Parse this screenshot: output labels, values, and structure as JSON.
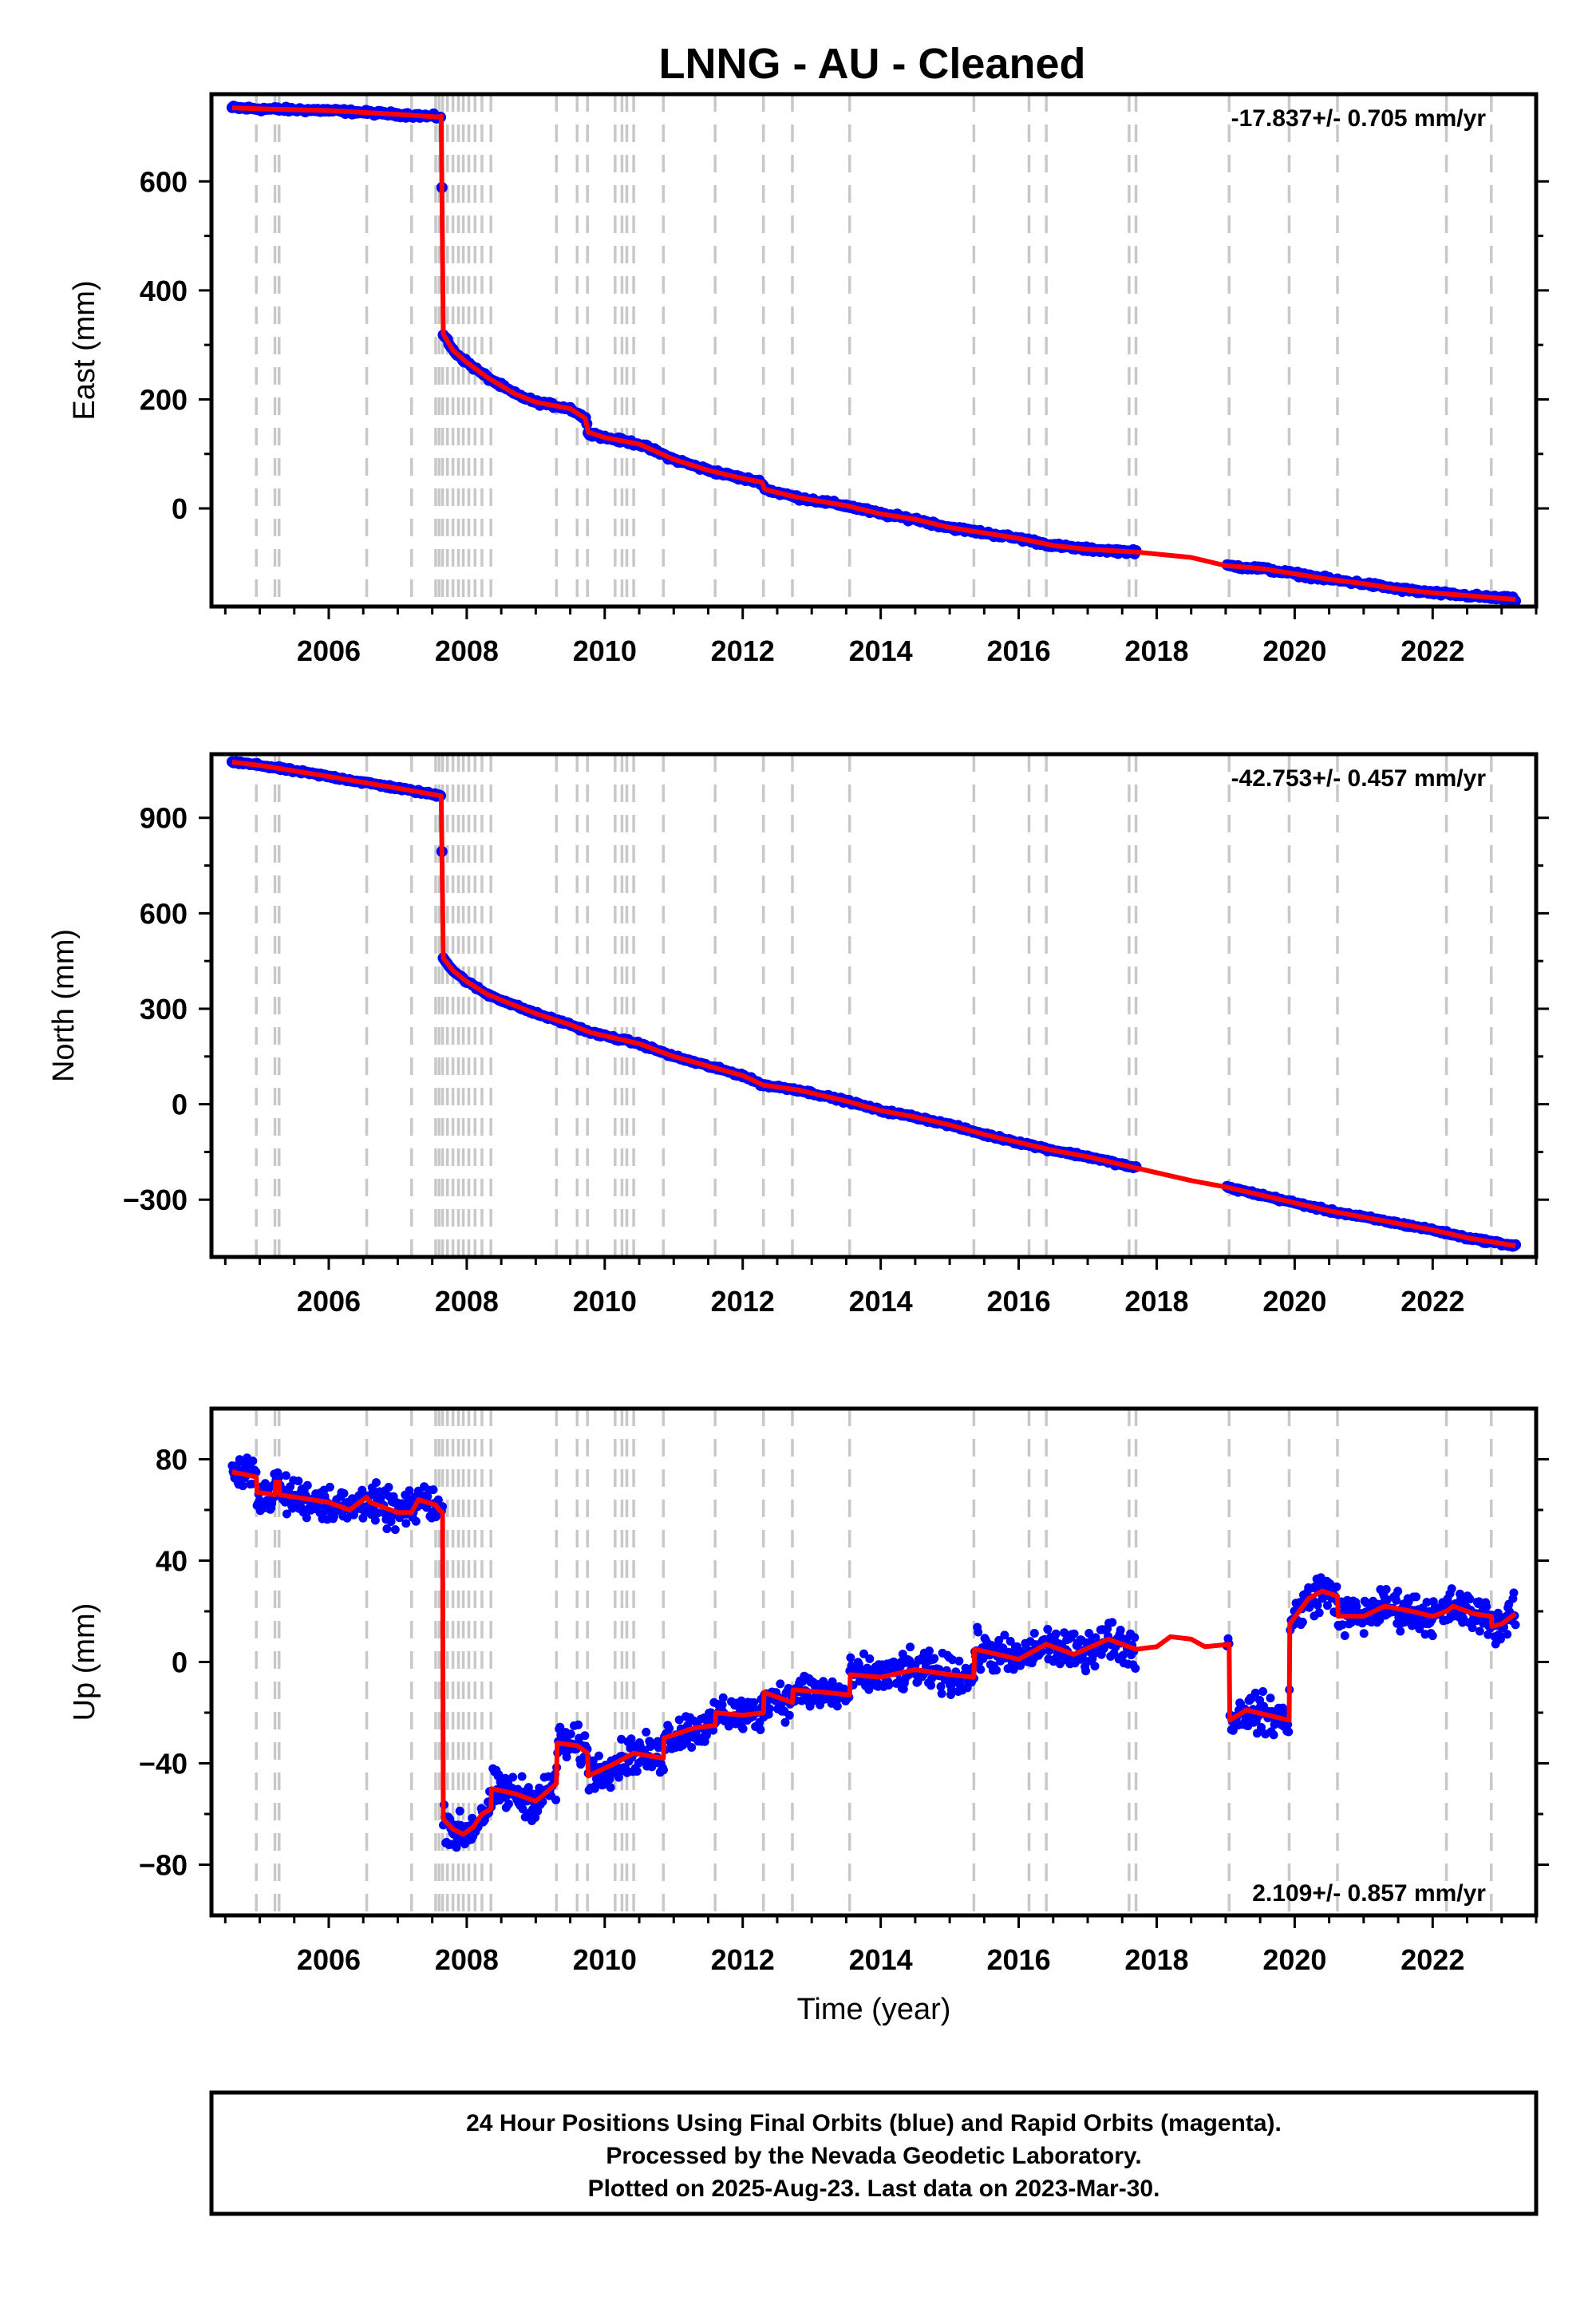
{
  "title": "LNNG  - AU - Cleaned",
  "colors": {
    "data": "#0000ff",
    "model": "#ff0000",
    "events": "#c8c8c8",
    "frame": "#000000"
  },
  "chart_data": [
    {
      "type": "scatter",
      "name": "east",
      "ylabel": "East (mm)",
      "rate": "-17.837+/- 0.705 mm/yr",
      "xlim": [
        2004.3,
        2023.5
      ],
      "ylim": [
        -180,
        760
      ],
      "yticks": [
        0,
        200,
        400,
        600
      ],
      "yticklabels": [
        "0",
        "200",
        "400",
        "600"
      ],
      "xticks": [
        2006,
        2008,
        2010,
        2012,
        2014,
        2016,
        2018,
        2020,
        2022
      ],
      "model": [
        [
          2004.6,
          735
        ],
        [
          2005.0,
          733
        ],
        [
          2006.0,
          730
        ],
        [
          2007.0,
          723
        ],
        [
          2007.6,
          718
        ],
        [
          2007.63,
          720
        ],
        [
          2007.66,
          320
        ],
        [
          2007.8,
          290
        ],
        [
          2008.0,
          268
        ],
        [
          2008.3,
          240
        ],
        [
          2008.7,
          210
        ],
        [
          2009.0,
          195
        ],
        [
          2009.5,
          183
        ],
        [
          2009.72,
          165
        ],
        [
          2009.76,
          140
        ],
        [
          2010.0,
          130
        ],
        [
          2010.5,
          118
        ],
        [
          2011.0,
          90
        ],
        [
          2011.5,
          70
        ],
        [
          2012.0,
          55
        ],
        [
          2012.28,
          48
        ],
        [
          2012.32,
          35
        ],
        [
          2012.8,
          20
        ],
        [
          2013.5,
          5
        ],
        [
          2014.0,
          -10
        ],
        [
          2014.5,
          -20
        ],
        [
          2015.0,
          -35
        ],
        [
          2015.5,
          -45
        ],
        [
          2016.0,
          -55
        ],
        [
          2016.5,
          -68
        ],
        [
          2017.0,
          -75
        ],
        [
          2017.7,
          -80
        ],
        [
          2018.5,
          -90
        ],
        [
          2019.0,
          -105
        ],
        [
          2019.5,
          -110
        ],
        [
          2020.0,
          -120
        ],
        [
          2020.5,
          -130
        ],
        [
          2021.0,
          -138
        ],
        [
          2021.5,
          -148
        ],
        [
          2022.0,
          -155
        ],
        [
          2022.5,
          -160
        ],
        [
          2023.2,
          -167
        ]
      ],
      "gaps": [
        [
          2017.7,
          2019.0
        ]
      ],
      "noise": 5,
      "events": [
        2004.95,
        2005.22,
        2005.28,
        2006.55,
        2007.2,
        2007.55,
        2007.6,
        2007.65,
        2007.72,
        2007.8,
        2007.88,
        2007.95,
        2008.03,
        2008.12,
        2008.22,
        2008.35,
        2009.3,
        2009.6,
        2009.75,
        2010.15,
        2010.25,
        2010.32,
        2010.42,
        2010.85,
        2011.6,
        2012.3,
        2012.72,
        2013.55,
        2015.35,
        2016.15,
        2016.4,
        2017.6,
        2017.7,
        2019.05,
        2019.92,
        2020.62,
        2022.2,
        2022.85
      ]
    },
    {
      "type": "scatter",
      "name": "north",
      "ylabel": "North (mm)",
      "rate": "-42.753+/- 0.457 mm/yr",
      "xlim": [
        2004.3,
        2023.5
      ],
      "ylim": [
        -480,
        1100
      ],
      "yticks": [
        -300,
        0,
        300,
        600,
        900
      ],
      "yticklabels": [
        "−300",
        "0",
        "300",
        "600",
        "900"
      ],
      "xticks": [
        2006,
        2008,
        2010,
        2012,
        2014,
        2016,
        2018,
        2020,
        2022
      ],
      "model": [
        [
          2004.6,
          1075
        ],
        [
          2005.0,
          1065
        ],
        [
          2006.0,
          1030
        ],
        [
          2007.0,
          993
        ],
        [
          2007.6,
          970
        ],
        [
          2007.63,
          968
        ],
        [
          2007.66,
          460
        ],
        [
          2007.8,
          420
        ],
        [
          2008.0,
          385
        ],
        [
          2008.3,
          345
        ],
        [
          2008.7,
          310
        ],
        [
          2009.0,
          285
        ],
        [
          2009.5,
          250
        ],
        [
          2009.8,
          225
        ],
        [
          2010.0,
          215
        ],
        [
          2010.5,
          190
        ],
        [
          2011.0,
          150
        ],
        [
          2011.5,
          120
        ],
        [
          2012.0,
          90
        ],
        [
          2012.3,
          60
        ],
        [
          2012.8,
          45
        ],
        [
          2013.5,
          10
        ],
        [
          2014.0,
          -20
        ],
        [
          2014.5,
          -40
        ],
        [
          2015.0,
          -65
        ],
        [
          2015.5,
          -95
        ],
        [
          2016.0,
          -120
        ],
        [
          2016.5,
          -145
        ],
        [
          2017.0,
          -165
        ],
        [
          2017.7,
          -200
        ],
        [
          2018.5,
          -240
        ],
        [
          2019.0,
          -260
        ],
        [
          2019.5,
          -285
        ],
        [
          2020.0,
          -310
        ],
        [
          2020.5,
          -335
        ],
        [
          2021.0,
          -355
        ],
        [
          2021.5,
          -375
        ],
        [
          2022.0,
          -395
        ],
        [
          2022.5,
          -420
        ],
        [
          2023.2,
          -445
        ]
      ],
      "gaps": [
        [
          2017.7,
          2019.0
        ]
      ],
      "noise": 6,
      "events": [
        2004.95,
        2005.22,
        2005.28,
        2006.55,
        2007.2,
        2007.55,
        2007.6,
        2007.65,
        2007.72,
        2007.8,
        2007.88,
        2007.95,
        2008.03,
        2008.12,
        2008.22,
        2008.35,
        2009.3,
        2009.6,
        2009.75,
        2010.15,
        2010.25,
        2010.32,
        2010.42,
        2010.85,
        2011.6,
        2012.3,
        2012.72,
        2013.55,
        2015.35,
        2016.15,
        2016.4,
        2017.6,
        2017.7,
        2019.05,
        2019.92,
        2020.62,
        2022.2,
        2022.85
      ]
    },
    {
      "type": "scatter",
      "name": "up",
      "ylabel": "Up (mm)",
      "xlabel": "Time (year)",
      "rate": "2.109+/- 0.857 mm/yr",
      "xlim": [
        2004.3,
        2023.5
      ],
      "ylim": [
        -100,
        100
      ],
      "yticks": [
        -80,
        -40,
        0,
        40,
        80
      ],
      "yticklabels": [
        "−80",
        "−40",
        "0",
        "40",
        "80"
      ],
      "xticks": [
        2006,
        2008,
        2010,
        2012,
        2014,
        2016,
        2018,
        2020,
        2022
      ],
      "model": [
        [
          2004.6,
          75
        ],
        [
          2004.95,
          73
        ],
        [
          2004.96,
          67
        ],
        [
          2005.22,
          66
        ],
        [
          2005.23,
          71
        ],
        [
          2005.28,
          71
        ],
        [
          2005.29,
          66
        ],
        [
          2006.0,
          63
        ],
        [
          2006.3,
          60
        ],
        [
          2006.55,
          65
        ],
        [
          2006.6,
          63
        ],
        [
          2007.0,
          59
        ],
        [
          2007.2,
          59
        ],
        [
          2007.3,
          64
        ],
        [
          2007.55,
          62
        ],
        [
          2007.6,
          60
        ],
        [
          2007.65,
          59
        ],
        [
          2007.66,
          -62
        ],
        [
          2007.8,
          -66
        ],
        [
          2007.95,
          -68
        ],
        [
          2008.1,
          -65
        ],
        [
          2008.22,
          -60
        ],
        [
          2008.35,
          -58
        ],
        [
          2008.36,
          -50
        ],
        [
          2008.7,
          -52
        ],
        [
          2009.0,
          -55
        ],
        [
          2009.3,
          -48
        ],
        [
          2009.31,
          -32
        ],
        [
          2009.6,
          -33
        ],
        [
          2009.75,
          -36
        ],
        [
          2009.76,
          -45
        ],
        [
          2010.15,
          -40
        ],
        [
          2010.42,
          -36
        ],
        [
          2010.85,
          -38
        ],
        [
          2010.86,
          -30
        ],
        [
          2011.3,
          -26
        ],
        [
          2011.6,
          -25
        ],
        [
          2011.61,
          -20
        ],
        [
          2012.0,
          -21
        ],
        [
          2012.3,
          -20
        ],
        [
          2012.31,
          -12
        ],
        [
          2012.72,
          -16
        ],
        [
          2012.73,
          -11
        ],
        [
          2013.2,
          -12
        ],
        [
          2013.55,
          -13
        ],
        [
          2013.56,
          -5
        ],
        [
          2014.0,
          -6
        ],
        [
          2014.5,
          -3
        ],
        [
          2015.0,
          -5
        ],
        [
          2015.35,
          -6
        ],
        [
          2015.36,
          5
        ],
        [
          2015.7,
          3
        ],
        [
          2016.0,
          1
        ],
        [
          2016.4,
          7
        ],
        [
          2016.8,
          3
        ],
        [
          2017.3,
          9
        ],
        [
          2017.7,
          5
        ],
        [
          2018.0,
          6
        ],
        [
          2018.2,
          10
        ],
        [
          2018.5,
          9
        ],
        [
          2018.7,
          6
        ],
        [
          2019.05,
          7
        ],
        [
          2019.06,
          -23
        ],
        [
          2019.3,
          -19
        ],
        [
          2019.92,
          -23
        ],
        [
          2019.93,
          15
        ],
        [
          2020.2,
          25
        ],
        [
          2020.4,
          28
        ],
        [
          2020.62,
          26
        ],
        [
          2020.63,
          18
        ],
        [
          2021.0,
          18
        ],
        [
          2021.3,
          22
        ],
        [
          2021.7,
          20
        ],
        [
          2022.0,
          18
        ],
        [
          2022.2,
          20
        ],
        [
          2022.3,
          22
        ],
        [
          2022.6,
          19
        ],
        [
          2022.85,
          18
        ],
        [
          2022.86,
          14
        ],
        [
          2023.0,
          15
        ],
        [
          2023.2,
          19
        ]
      ],
      "gaps": [
        [
          2017.7,
          2019.0
        ]
      ],
      "noise": 6,
      "events": [
        2004.95,
        2005.22,
        2005.28,
        2006.55,
        2007.2,
        2007.55,
        2007.6,
        2007.65,
        2007.72,
        2007.8,
        2007.88,
        2007.95,
        2008.03,
        2008.12,
        2008.22,
        2008.35,
        2009.3,
        2009.6,
        2009.75,
        2010.15,
        2010.25,
        2010.32,
        2010.42,
        2010.85,
        2011.6,
        2012.3,
        2012.72,
        2013.55,
        2015.35,
        2016.15,
        2016.4,
        2017.6,
        2017.7,
        2019.05,
        2019.92,
        2020.62,
        2022.2,
        2022.85
      ]
    }
  ],
  "footer": {
    "line1": "24 Hour Positions Using Final Orbits (blue) and Rapid Orbits (magenta).",
    "line2": "Processed by the Nevada Geodetic Laboratory.",
    "line3": "Plotted on 2025-Aug-23. Last data on 2023-Mar-30."
  }
}
